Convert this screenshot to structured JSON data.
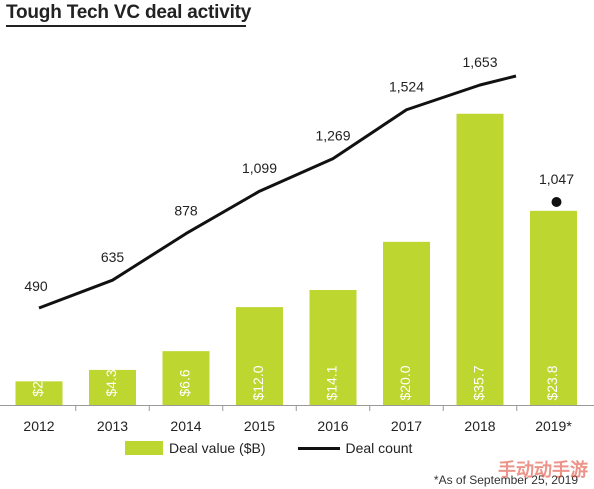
{
  "title": "Tough Tech VC deal activity",
  "footnote": "*As of September 25, 2019",
  "watermark": "手动动手游",
  "colors": {
    "bar": "#bdd630",
    "line": "#111111",
    "axis": "#999999",
    "text": "#222222"
  },
  "legend": {
    "bar_label": "Deal value ($B)",
    "line_label": "Deal count"
  },
  "chart_data": {
    "type": "bar",
    "categories": [
      "2012",
      "2013",
      "2014",
      "2015",
      "2016",
      "2017",
      "2018",
      "2019*"
    ],
    "series": [
      {
        "name": "Deal value ($B)",
        "type": "bar",
        "values": [
          2.9,
          4.3,
          6.6,
          12.0,
          14.1,
          20.0,
          35.7,
          23.8
        ],
        "labels": [
          "$2.9",
          "$4.3",
          "$6.6",
          "$12.0",
          "$14.1",
          "$20.0",
          "$35.7",
          "$23.8"
        ]
      },
      {
        "name": "Deal count",
        "type": "line",
        "values": [
          490,
          635,
          878,
          1099,
          1269,
          1524,
          1653,
          1047
        ],
        "labels": [
          "490",
          "635",
          "878",
          "1,099",
          "1,269",
          "1,524",
          "1,653",
          "1,047"
        ]
      }
    ],
    "ylim_value": [
      0,
      38
    ],
    "ylim_count": [
      0,
      2000
    ],
    "grid": false,
    "legend_position": "bottom"
  }
}
